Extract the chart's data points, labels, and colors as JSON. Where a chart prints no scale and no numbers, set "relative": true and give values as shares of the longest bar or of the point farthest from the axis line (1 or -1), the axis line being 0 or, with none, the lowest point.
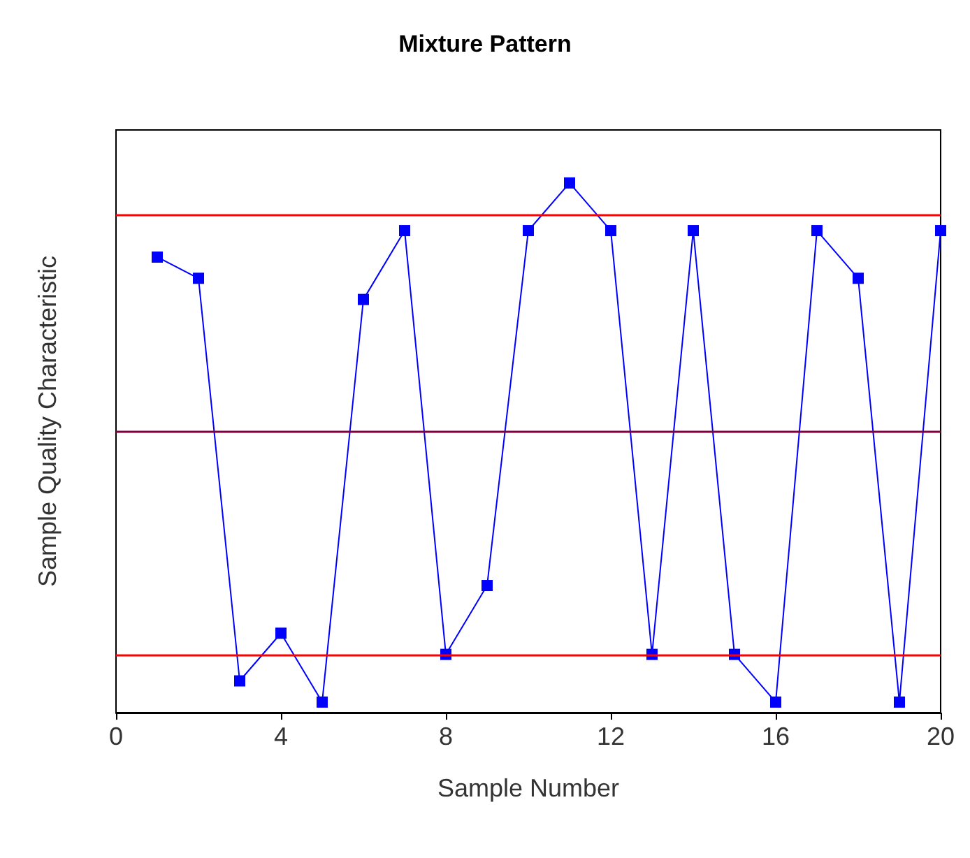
{
  "chart_data": {
    "type": "line",
    "title": "Mixture Pattern",
    "xlabel": "Sample Number",
    "ylabel": "Sample Quality Characteristic",
    "relative": true,
    "x": [
      1,
      2,
      3,
      4,
      5,
      6,
      7,
      8,
      9,
      10,
      11,
      12,
      13,
      14,
      15,
      16,
      17,
      18,
      19,
      20
    ],
    "xlim": [
      0,
      20
    ],
    "xticks": [
      0,
      4,
      8,
      12,
      16,
      20
    ],
    "series": [
      {
        "color": "#0000ff",
        "values": [
          0.86,
          0.82,
          0.06,
          0.15,
          0.02,
          0.78,
          0.91,
          0.11,
          0.24,
          0.91,
          1,
          0.91,
          0.11,
          0.91,
          0.11,
          0.02,
          0.91,
          0.82,
          0.02,
          0.91
        ]
      }
    ],
    "ref_lines": [
      {
        "axis": "y",
        "value": 0.94,
        "color": "#ff0000"
      },
      {
        "axis": "y",
        "value": 0.53,
        "color": "#800040"
      },
      {
        "axis": "y",
        "value": 0.11,
        "color": "#ff0000"
      }
    ],
    "marker": "square",
    "line_style": "solid",
    "grid": false
  }
}
